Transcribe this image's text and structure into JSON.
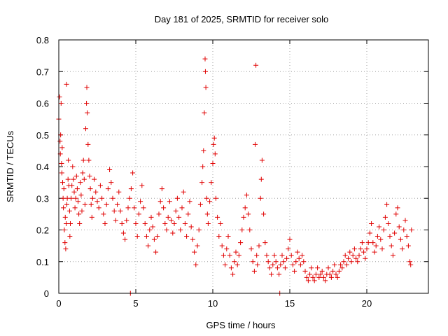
{
  "chart_data": {
    "type": "scatter",
    "title": "Day 181 of 2025, SRMTID for receiver solo",
    "xlabel": "GPS time / hours",
    "ylabel": "SRMTID / TECUs",
    "xlim": [
      0,
      24
    ],
    "ylim": [
      0,
      0.8
    ],
    "xticks": [
      0,
      5,
      10,
      15,
      20
    ],
    "yticks": [
      0,
      0.1,
      0.2,
      0.3,
      0.4,
      0.5,
      0.6,
      0.7,
      0.8
    ],
    "xtick_labels": [
      "0",
      "5",
      "10",
      "15",
      "20"
    ],
    "ytick_labels": [
      "0",
      "0.1",
      "0.2",
      "0.3",
      "0.4",
      "0.5",
      "0.6",
      "0.7",
      "0.8"
    ],
    "grid": true,
    "marker": "+",
    "color": "#e00000",
    "series": [
      {
        "name": "SRMTID",
        "points": [
          [
            0.0,
            0.55
          ],
          [
            0.05,
            0.62
          ],
          [
            0.08,
            0.48
          ],
          [
            0.1,
            0.44
          ],
          [
            0.12,
            0.5
          ],
          [
            0.15,
            0.6
          ],
          [
            0.18,
            0.41
          ],
          [
            0.2,
            0.38
          ],
          [
            0.22,
            0.46
          ],
          [
            0.25,
            0.35
          ],
          [
            0.28,
            0.3
          ],
          [
            0.3,
            0.27
          ],
          [
            0.33,
            0.33
          ],
          [
            0.36,
            0.2
          ],
          [
            0.4,
            0.16
          ],
          [
            0.42,
            0.24
          ],
          [
            0.45,
            0.14
          ],
          [
            0.48,
            0.22
          ],
          [
            0.5,
            0.66
          ],
          [
            0.52,
            0.28
          ],
          [
            0.55,
            0.3
          ],
          [
            0.6,
            0.36
          ],
          [
            0.62,
            0.42
          ],
          [
            0.65,
            0.34
          ],
          [
            0.7,
            0.26
          ],
          [
            0.72,
            0.18
          ],
          [
            0.75,
            0.22
          ],
          [
            0.8,
            0.3
          ],
          [
            0.85,
            0.34
          ],
          [
            0.9,
            0.4
          ],
          [
            0.95,
            0.36
          ],
          [
            1.0,
            0.32
          ],
          [
            1.05,
            0.27
          ],
          [
            1.1,
            0.3
          ],
          [
            1.15,
            0.37
          ],
          [
            1.2,
            0.33
          ],
          [
            1.25,
            0.29
          ],
          [
            1.3,
            0.25
          ],
          [
            1.35,
            0.22
          ],
          [
            1.4,
            0.35
          ],
          [
            1.45,
            0.31
          ],
          [
            1.5,
            0.26
          ],
          [
            1.55,
            0.38
          ],
          [
            1.6,
            0.42
          ],
          [
            1.65,
            0.36
          ],
          [
            1.7,
            0.28
          ],
          [
            1.75,
            0.52
          ],
          [
            1.8,
            0.6
          ],
          [
            1.82,
            0.65
          ],
          [
            1.85,
            0.57
          ],
          [
            1.9,
            0.47
          ],
          [
            1.95,
            0.42
          ],
          [
            2.0,
            0.37
          ],
          [
            2.05,
            0.33
          ],
          [
            2.1,
            0.28
          ],
          [
            2.15,
            0.24
          ],
          [
            2.2,
            0.3
          ],
          [
            2.3,
            0.36
          ],
          [
            2.4,
            0.32
          ],
          [
            2.5,
            0.29
          ],
          [
            2.6,
            0.27
          ],
          [
            2.7,
            0.34
          ],
          [
            2.8,
            0.3
          ],
          [
            2.9,
            0.25
          ],
          [
            3.0,
            0.22
          ],
          [
            3.1,
            0.28
          ],
          [
            3.2,
            0.33
          ],
          [
            3.3,
            0.39
          ],
          [
            3.4,
            0.35
          ],
          [
            3.5,
            0.3
          ],
          [
            3.6,
            0.26
          ],
          [
            3.7,
            0.23
          ],
          [
            3.8,
            0.28
          ],
          [
            3.9,
            0.32
          ],
          [
            4.0,
            0.26
          ],
          [
            4.1,
            0.22
          ],
          [
            4.2,
            0.19
          ],
          [
            4.3,
            0.17
          ],
          [
            4.4,
            0.23
          ],
          [
            4.5,
            0.27
          ],
          [
            4.6,
            0.3
          ],
          [
            4.7,
            0.33
          ],
          [
            4.8,
            0.38
          ],
          [
            4.9,
            0.27
          ],
          [
            5.0,
            0.22
          ],
          [
            5.1,
            0.18
          ],
          [
            5.2,
            0.25
          ],
          [
            5.3,
            0.29
          ],
          [
            5.4,
            0.34
          ],
          [
            5.5,
            0.27
          ],
          [
            5.6,
            0.22
          ],
          [
            5.7,
            0.18
          ],
          [
            5.8,
            0.15
          ],
          [
            5.9,
            0.2
          ],
          [
            6.0,
            0.24
          ],
          [
            6.1,
            0.21
          ],
          [
            6.2,
            0.17
          ],
          [
            6.3,
            0.13
          ],
          [
            6.4,
            0.18
          ],
          [
            6.5,
            0.25
          ],
          [
            6.6,
            0.29
          ],
          [
            6.7,
            0.33
          ],
          [
            6.8,
            0.27
          ],
          [
            6.9,
            0.22
          ],
          [
            7.0,
            0.2
          ],
          [
            7.1,
            0.24
          ],
          [
            7.2,
            0.29
          ],
          [
            7.3,
            0.23
          ],
          [
            7.4,
            0.19
          ],
          [
            7.5,
            0.22
          ],
          [
            7.6,
            0.26
          ],
          [
            7.7,
            0.3
          ],
          [
            7.8,
            0.24
          ],
          [
            7.9,
            0.2
          ],
          [
            8.0,
            0.27
          ],
          [
            8.1,
            0.32
          ],
          [
            8.2,
            0.22
          ],
          [
            8.3,
            0.18
          ],
          [
            8.4,
            0.25
          ],
          [
            8.5,
            0.29
          ],
          [
            8.6,
            0.21
          ],
          [
            8.7,
            0.17
          ],
          [
            8.8,
            0.13
          ],
          [
            8.9,
            0.09
          ],
          [
            9.0,
            0.15
          ],
          [
            9.1,
            0.2
          ],
          [
            9.2,
            0.28
          ],
          [
            9.3,
            0.35
          ],
          [
            9.35,
            0.4
          ],
          [
            9.4,
            0.45
          ],
          [
            9.45,
            0.57
          ],
          [
            9.5,
            0.74
          ],
          [
            9.52,
            0.7
          ],
          [
            9.55,
            0.65
          ],
          [
            9.6,
            0.3
          ],
          [
            9.65,
            0.25
          ],
          [
            9.7,
            0.22
          ],
          [
            9.8,
            0.29
          ],
          [
            9.9,
            0.35
          ],
          [
            10.0,
            0.41
          ],
          [
            10.05,
            0.47
          ],
          [
            10.1,
            0.49
          ],
          [
            10.15,
            0.44
          ],
          [
            10.2,
            0.3
          ],
          [
            10.3,
            0.24
          ],
          [
            10.4,
            0.18
          ],
          [
            10.5,
            0.22
          ],
          [
            10.6,
            0.15
          ],
          [
            10.7,
            0.12
          ],
          [
            10.8,
            0.09
          ],
          [
            10.9,
            0.14
          ],
          [
            11.0,
            0.18
          ],
          [
            11.1,
            0.12
          ],
          [
            11.2,
            0.08
          ],
          [
            11.3,
            0.06
          ],
          [
            11.4,
            0.1
          ],
          [
            11.5,
            0.13
          ],
          [
            11.6,
            0.09
          ],
          [
            11.7,
            0.12
          ],
          [
            11.8,
            0.16
          ],
          [
            11.9,
            0.2
          ],
          [
            12.0,
            0.24
          ],
          [
            12.1,
            0.27
          ],
          [
            12.2,
            0.31
          ],
          [
            12.3,
            0.25
          ],
          [
            12.4,
            0.2
          ],
          [
            12.5,
            0.14
          ],
          [
            12.6,
            0.1
          ],
          [
            12.7,
            0.07
          ],
          [
            12.75,
            0.47
          ],
          [
            12.8,
            0.72
          ],
          [
            12.85,
            0.12
          ],
          [
            12.9,
            0.09
          ],
          [
            13.0,
            0.15
          ],
          [
            13.1,
            0.3
          ],
          [
            13.15,
            0.36
          ],
          [
            13.2,
            0.42
          ],
          [
            13.3,
            0.25
          ],
          [
            13.4,
            0.16
          ],
          [
            13.5,
            0.12
          ],
          [
            13.6,
            0.1
          ],
          [
            13.7,
            0.08
          ],
          [
            13.8,
            0.06
          ],
          [
            13.9,
            0.09
          ],
          [
            14.0,
            0.12
          ],
          [
            14.1,
            0.1
          ],
          [
            14.2,
            0.08
          ],
          [
            14.3,
            0.06
          ],
          [
            14.4,
            0.09
          ],
          [
            14.5,
            0.12
          ],
          [
            14.6,
            0.1
          ],
          [
            14.7,
            0.08
          ],
          [
            14.8,
            0.11
          ],
          [
            14.9,
            0.14
          ],
          [
            15.0,
            0.17
          ],
          [
            15.1,
            0.12
          ],
          [
            15.2,
            0.09
          ],
          [
            15.3,
            0.07
          ],
          [
            15.4,
            0.1
          ],
          [
            15.5,
            0.13
          ],
          [
            15.6,
            0.11
          ],
          [
            15.7,
            0.09
          ],
          [
            15.8,
            0.12
          ],
          [
            15.9,
            0.1
          ],
          [
            16.0,
            0.07
          ],
          [
            16.1,
            0.05
          ],
          [
            16.2,
            0.04
          ],
          [
            16.3,
            0.06
          ],
          [
            16.4,
            0.08
          ],
          [
            16.5,
            0.05
          ],
          [
            16.6,
            0.04
          ],
          [
            16.7,
            0.06
          ],
          [
            16.8,
            0.08
          ],
          [
            16.9,
            0.05
          ],
          [
            17.0,
            0.06
          ],
          [
            17.1,
            0.07
          ],
          [
            17.2,
            0.05
          ],
          [
            17.3,
            0.04
          ],
          [
            17.4,
            0.06
          ],
          [
            17.5,
            0.08
          ],
          [
            17.6,
            0.06
          ],
          [
            17.7,
            0.05
          ],
          [
            17.8,
            0.07
          ],
          [
            17.9,
            0.09
          ],
          [
            18.0,
            0.06
          ],
          [
            18.1,
            0.05
          ],
          [
            18.2,
            0.07
          ],
          [
            18.3,
            0.09
          ],
          [
            18.4,
            0.08
          ],
          [
            18.5,
            0.1
          ],
          [
            18.6,
            0.12
          ],
          [
            18.7,
            0.09
          ],
          [
            18.8,
            0.11
          ],
          [
            18.9,
            0.13
          ],
          [
            19.0,
            0.1
          ],
          [
            19.1,
            0.12
          ],
          [
            19.2,
            0.14
          ],
          [
            19.3,
            0.11
          ],
          [
            19.4,
            0.1
          ],
          [
            19.5,
            0.12
          ],
          [
            19.6,
            0.14
          ],
          [
            19.7,
            0.16
          ],
          [
            19.8,
            0.13
          ],
          [
            19.9,
            0.11
          ],
          [
            20.0,
            0.14
          ],
          [
            20.1,
            0.16
          ],
          [
            20.2,
            0.19
          ],
          [
            20.3,
            0.22
          ],
          [
            20.4,
            0.16
          ],
          [
            20.5,
            0.13
          ],
          [
            20.6,
            0.15
          ],
          [
            20.7,
            0.18
          ],
          [
            20.8,
            0.21
          ],
          [
            20.9,
            0.17
          ],
          [
            21.0,
            0.14
          ],
          [
            21.1,
            0.2
          ],
          [
            21.2,
            0.24
          ],
          [
            21.3,
            0.28
          ],
          [
            21.4,
            0.22
          ],
          [
            21.5,
            0.18
          ],
          [
            21.6,
            0.15
          ],
          [
            21.7,
            0.12
          ],
          [
            21.8,
            0.19
          ],
          [
            21.9,
            0.25
          ],
          [
            22.0,
            0.27
          ],
          [
            22.1,
            0.21
          ],
          [
            22.2,
            0.17
          ],
          [
            22.3,
            0.14
          ],
          [
            22.4,
            0.2
          ],
          [
            22.5,
            0.23
          ],
          [
            22.6,
            0.18
          ],
          [
            22.7,
            0.15
          ],
          [
            22.8,
            0.1
          ],
          [
            22.85,
            0.09
          ],
          [
            22.9,
            0.2
          ],
          [
            4.65,
            0.0
          ],
          [
            14.35,
            0.0
          ]
        ]
      }
    ]
  }
}
